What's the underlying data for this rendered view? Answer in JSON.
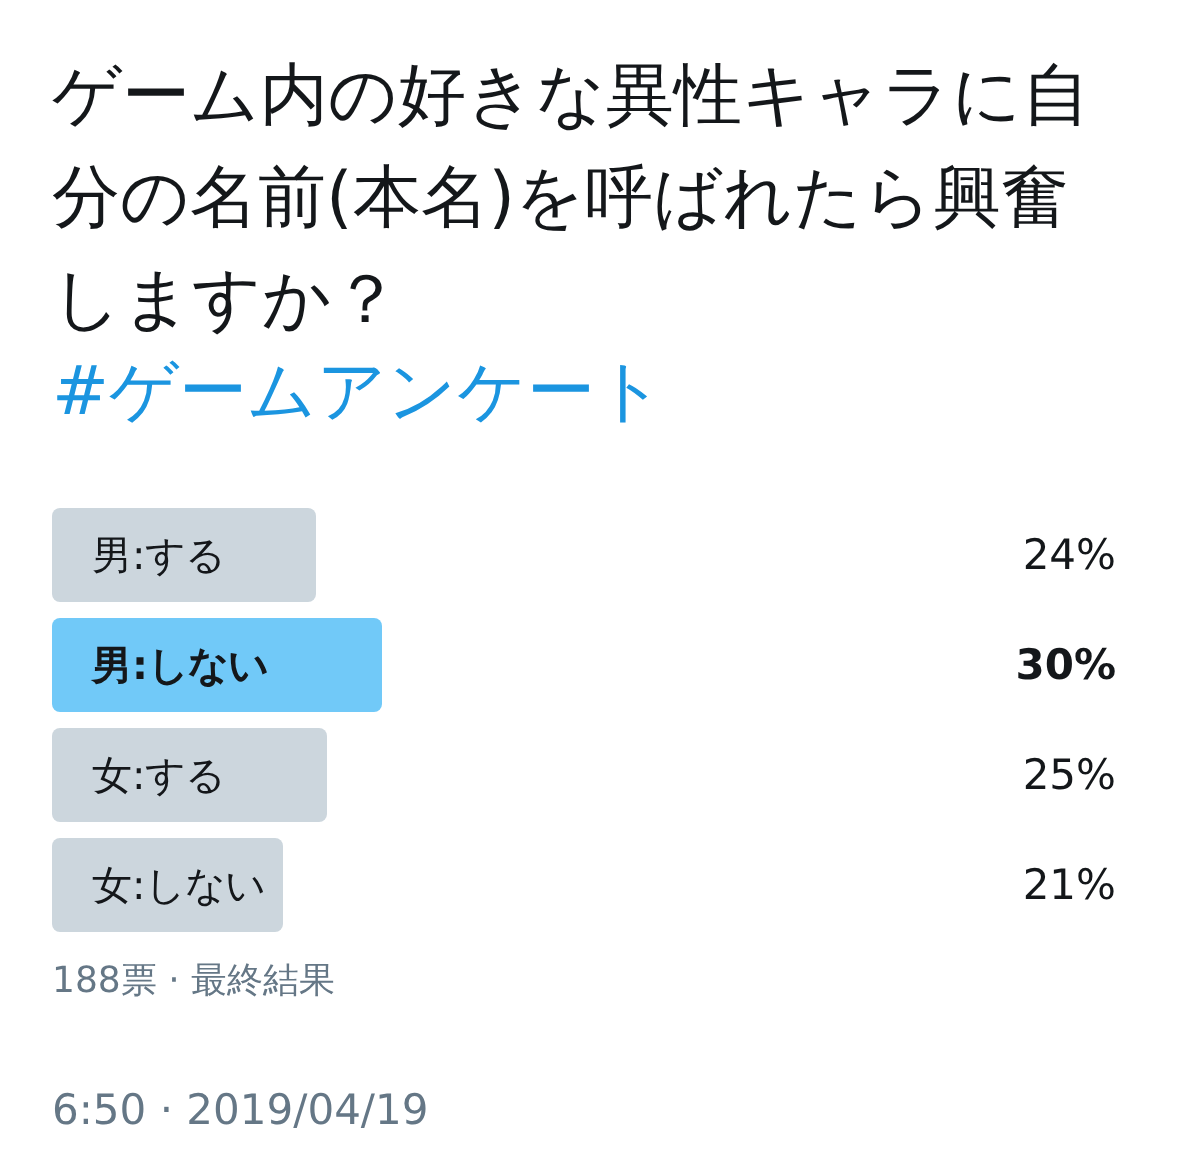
{
  "chart_data": {
    "type": "bar",
    "orientation": "horizontal",
    "title": "ゲーム内の好きな異性キャラに自分の名前(本名)を呼ばれたら興奮しますか？",
    "subtitle": "#ゲームアンケート",
    "categories": [
      "男:する",
      "男:しない",
      "女:する",
      "女:しない"
    ],
    "values": [
      24,
      30,
      25,
      21
    ],
    "colors": [
      "#ccd6dd",
      "#71c9f8",
      "#ccd6dd",
      "#ccd6dd"
    ],
    "value_labels": [
      "24%",
      "30%",
      "25%",
      "21%"
    ],
    "tick_labels": "y",
    "annotations": [
      "188票 · 最終結果",
      "6:50 · 2019/04/19"
    ]
  }
}
